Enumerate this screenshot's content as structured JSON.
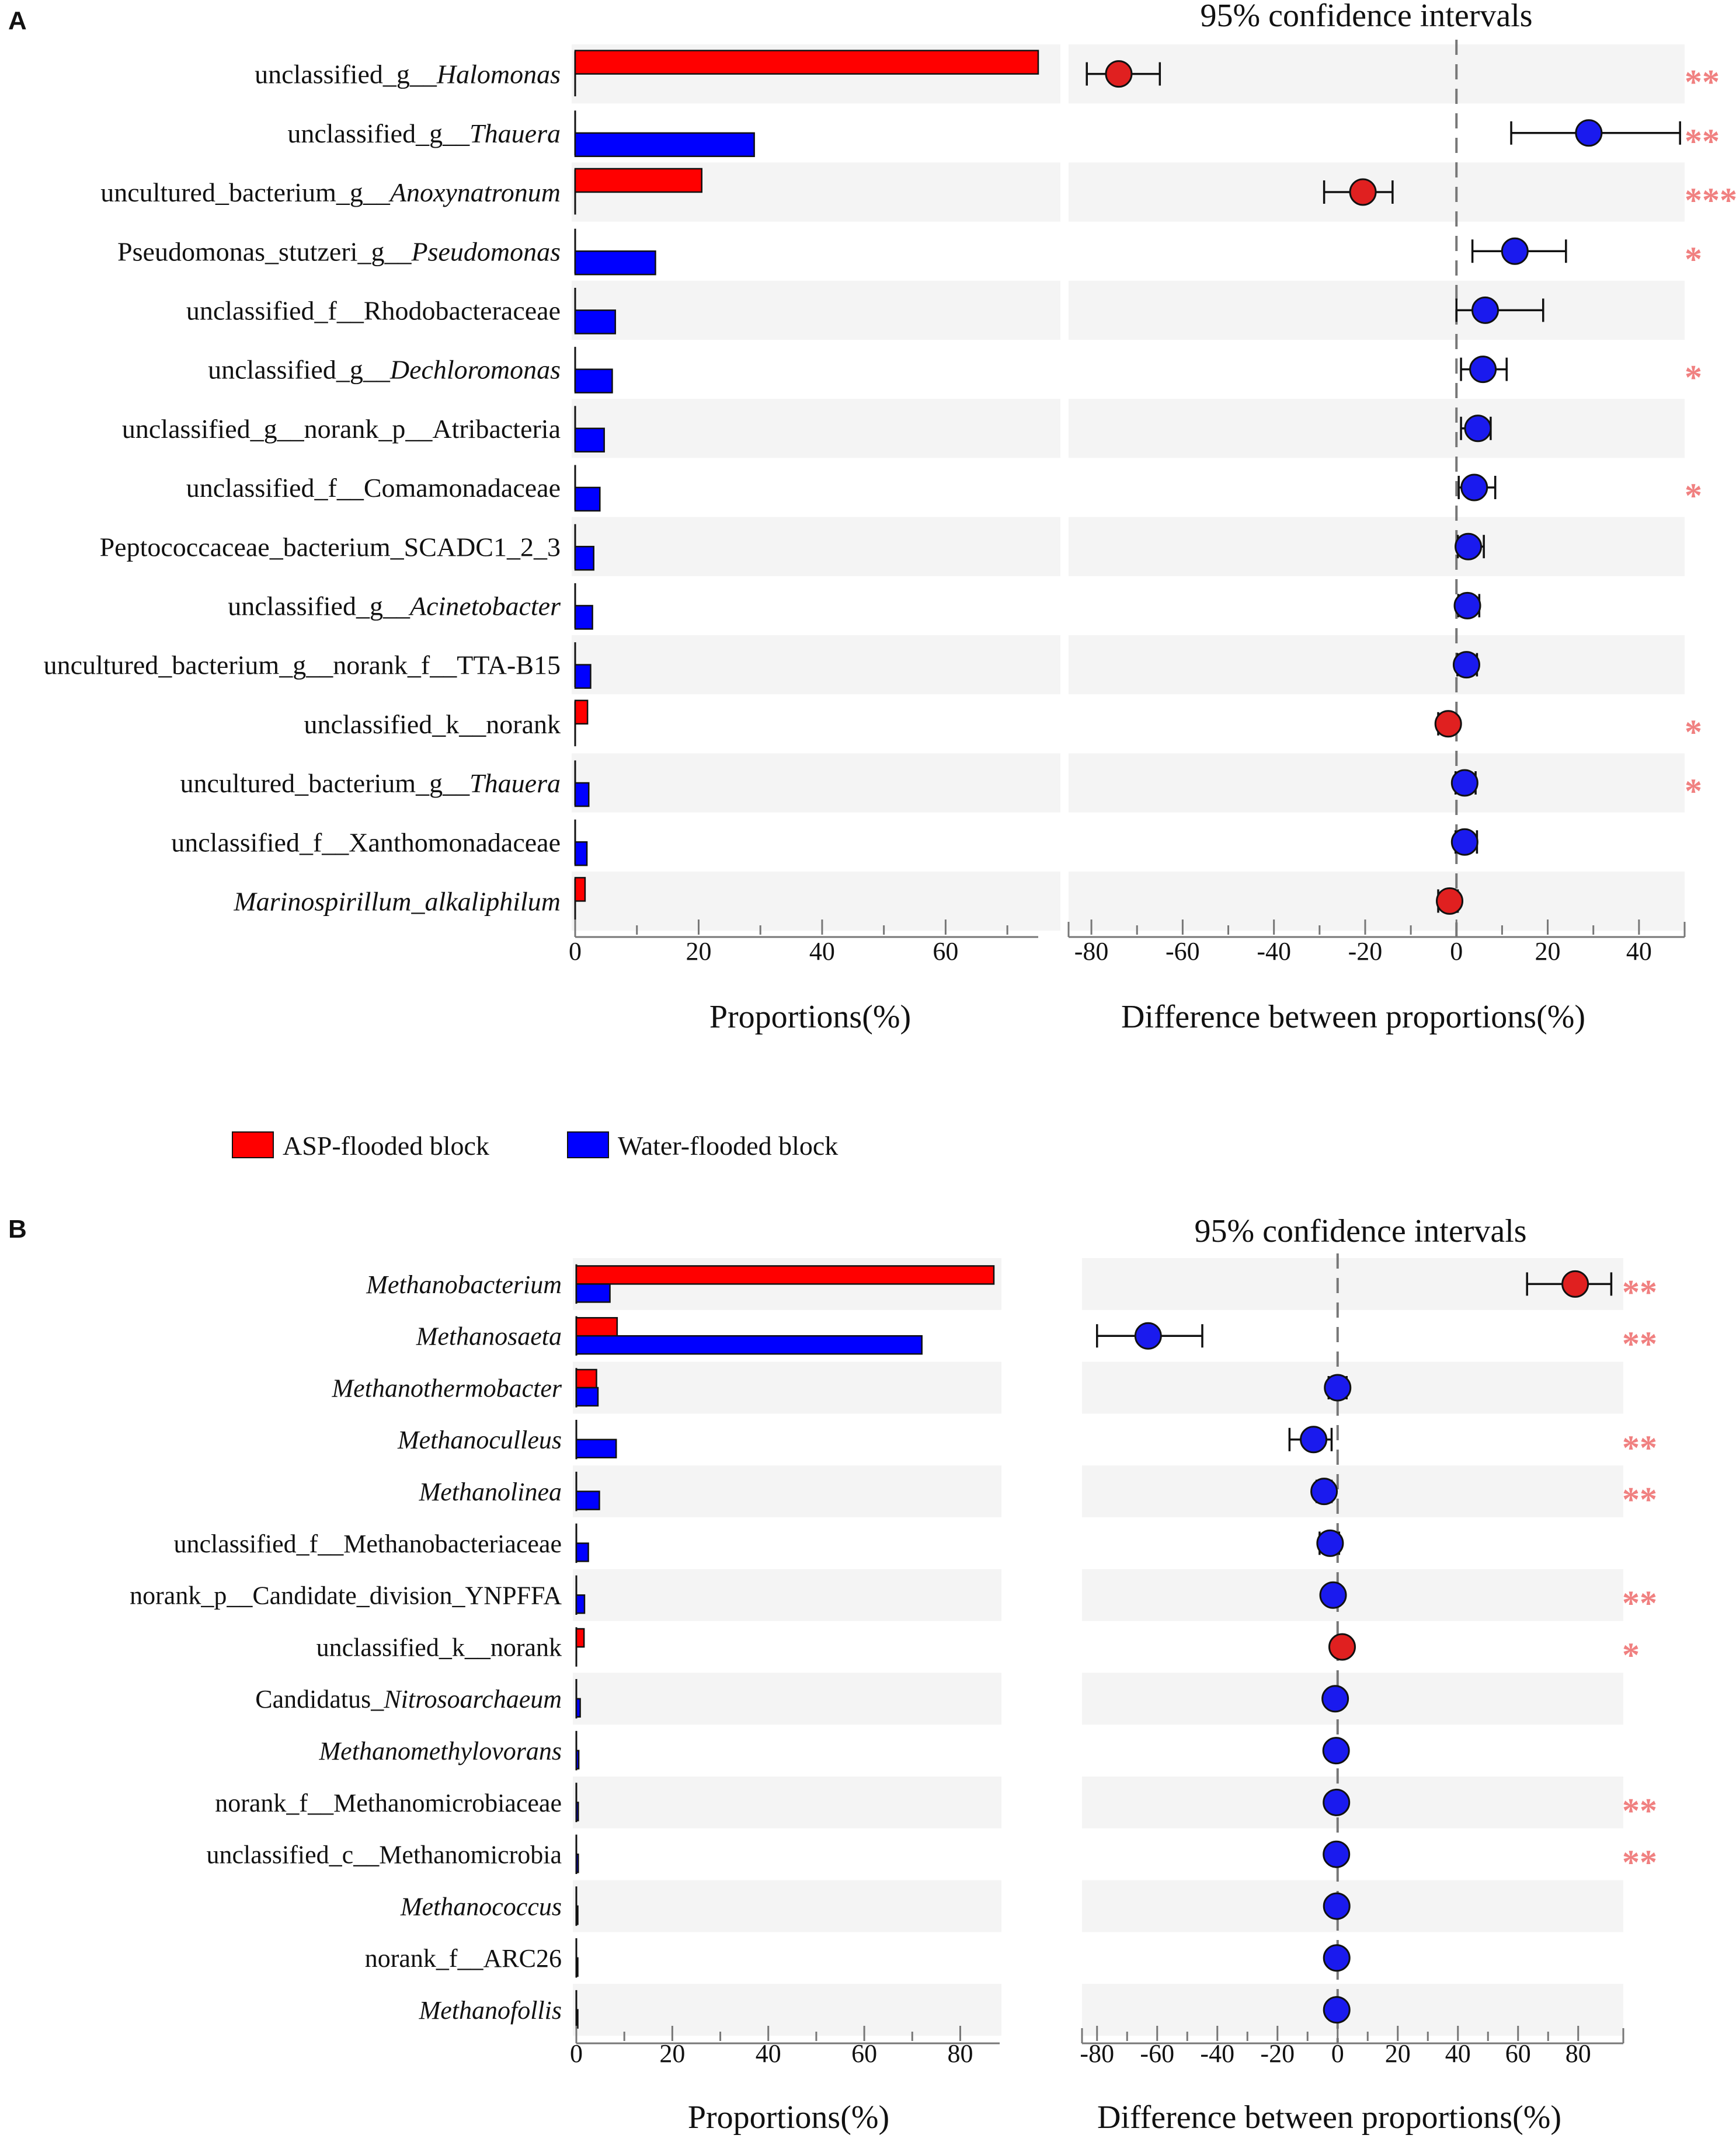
{
  "panel_letters": [
    "A",
    "B"
  ],
  "legend": [
    {
      "label": "ASP-flooded block",
      "color": "#ff0000"
    },
    {
      "label": "Water-flooded block",
      "color": "#0000ff"
    }
  ],
  "colors": {
    "asp": "#ff0000",
    "water": "#0000ff",
    "asp_dot": "#e02020",
    "water_dot": "#1a1aee",
    "stripe": "#f4f4f4",
    "star": "#f08080"
  },
  "chart_data": [
    {
      "type": "bar",
      "panel": "A",
      "title": "95% confidence intervals",
      "xlabel_left": "Proportions(%)",
      "xlabel_right": "Difference between proportions(%)",
      "left_xlim": [
        0,
        75
      ],
      "left_ticks": [
        "0",
        "20",
        "40",
        "60"
      ],
      "right_xlim": [
        -85,
        50
      ],
      "right_ticks": [
        "-80",
        "-60",
        "-40",
        "-20",
        "0",
        "20",
        "40"
      ],
      "series": [
        {
          "name": "ASP-flooded block",
          "values": [
            75.0,
            0.0,
            20.5,
            0.0,
            0.0,
            0.0,
            0.0,
            0.0,
            0.0,
            0.0,
            0.0,
            2.0,
            0.0,
            0.0,
            1.6
          ]
        },
        {
          "name": "Water-flooded block",
          "values": [
            0.0,
            29.0,
            0.0,
            13.0,
            6.5,
            6.0,
            4.7,
            4.0,
            3.0,
            2.8,
            2.5,
            0.0,
            2.2,
            1.9,
            0.0
          ]
        }
      ],
      "categories": [
        {
          "prefix": "unclassified_g__",
          "italic": "Halomonas",
          "suffix": ""
        },
        {
          "prefix": "unclassified_g__",
          "italic": "Thauera",
          "suffix": ""
        },
        {
          "prefix": "uncultured_bacterium_g__",
          "italic": "Anoxynatronum",
          "suffix": ""
        },
        {
          "prefix": "Pseudomonas_stutzeri_g__",
          "italic": "Pseudomonas",
          "suffix": ""
        },
        {
          "prefix": "unclassified_f__Rhodobacteraceae",
          "italic": "",
          "suffix": ""
        },
        {
          "prefix": "unclassified_g__",
          "italic": "Dechloromonas",
          "suffix": ""
        },
        {
          "prefix": "unclassified_g__norank_p__Atribacteria",
          "italic": "",
          "suffix": ""
        },
        {
          "prefix": "unclassified_f__Comamonadaceae",
          "italic": "",
          "suffix": ""
        },
        {
          "prefix": "Peptococcaceae_bacterium_SCADC1_2_3",
          "italic": "",
          "suffix": ""
        },
        {
          "prefix": "unclassified_g__",
          "italic": "Acinetobacter",
          "suffix": ""
        },
        {
          "prefix": "uncultured_bacterium_g__norank_f__TTA-B15",
          "italic": "",
          "suffix": ""
        },
        {
          "prefix": "unclassified_k__norank",
          "italic": "",
          "suffix": ""
        },
        {
          "prefix": "uncultured_bacterium_g__",
          "italic": "Thauera",
          "suffix": ""
        },
        {
          "prefix": "unclassified_f__Xanthomonadaceae",
          "italic": "",
          "suffix": ""
        },
        {
          "prefix": "",
          "italic": "Marinospirillum_alkaliphilum",
          "suffix": ""
        }
      ],
      "diff": [
        {
          "mean": -74,
          "lo": -81,
          "hi": -65,
          "group": "asp",
          "sig": "**"
        },
        {
          "mean": 29,
          "lo": 12,
          "hi": 49,
          "group": "water",
          "sig": "**"
        },
        {
          "mean": -20.5,
          "lo": -29,
          "hi": -14,
          "group": "asp",
          "sig": "***"
        },
        {
          "mean": 12.8,
          "lo": 3.5,
          "hi": 24,
          "group": "water",
          "sig": "*"
        },
        {
          "mean": 6.3,
          "lo": 0,
          "hi": 19,
          "group": "water",
          "sig": ""
        },
        {
          "mean": 5.8,
          "lo": 1,
          "hi": 11,
          "group": "water",
          "sig": "*"
        },
        {
          "mean": 4.7,
          "lo": 1,
          "hi": 7.5,
          "group": "water",
          "sig": ""
        },
        {
          "mean": 3.9,
          "lo": 0.5,
          "hi": 8.5,
          "group": "water",
          "sig": "*"
        },
        {
          "mean": 2.6,
          "lo": 0.3,
          "hi": 6,
          "group": "water",
          "sig": ""
        },
        {
          "mean": 2.4,
          "lo": 0.4,
          "hi": 5,
          "group": "water",
          "sig": ""
        },
        {
          "mean": 2.2,
          "lo": 0.2,
          "hi": 4.5,
          "group": "water",
          "sig": ""
        },
        {
          "mean": -1.8,
          "lo": -4,
          "hi": -0.5,
          "group": "asp",
          "sig": "*"
        },
        {
          "mean": 1.8,
          "lo": -0.2,
          "hi": 4.2,
          "group": "water",
          "sig": "*"
        },
        {
          "mean": 1.8,
          "lo": -0.2,
          "hi": 4.5,
          "group": "water",
          "sig": ""
        },
        {
          "mean": -1.5,
          "lo": -4,
          "hi": 0.3,
          "group": "asp",
          "sig": ""
        }
      ]
    },
    {
      "type": "bar",
      "panel": "B",
      "title": "95% confidence intervals",
      "xlabel_left": "Proportions(%)",
      "xlabel_right": "Difference between proportions(%)",
      "left_xlim": [
        0,
        90
      ],
      "left_ticks": [
        "0",
        "20",
        "40",
        "60",
        "80"
      ],
      "right_xlim": [
        -85,
        95
      ],
      "right_ticks": [
        "-80",
        "-60",
        "-40",
        "-20",
        "0",
        "20",
        "40",
        "60",
        "80"
      ],
      "series": [
        {
          "name": "ASP-flooded block",
          "values": [
            87.0,
            8.5,
            4.2,
            0.0,
            0.0,
            0.0,
            0.0,
            1.6,
            0.0,
            0.0,
            0.0,
            0.0,
            0.0,
            0.0,
            0.0
          ]
        },
        {
          "name": "Water-flooded block",
          "values": [
            7.0,
            72.0,
            4.5,
            8.3,
            4.8,
            2.5,
            1.7,
            0.0,
            0.8,
            0.5,
            0.4,
            0.4,
            0.3,
            0.3,
            0.3
          ]
        }
      ],
      "categories": [
        {
          "prefix": "",
          "italic": "Methanobacterium",
          "suffix": ""
        },
        {
          "prefix": "",
          "italic": "Methanosaeta",
          "suffix": ""
        },
        {
          "prefix": "",
          "italic": "Methanothermobacter",
          "suffix": ""
        },
        {
          "prefix": "",
          "italic": "Methanoculleus",
          "suffix": ""
        },
        {
          "prefix": "",
          "italic": "Methanolinea",
          "suffix": ""
        },
        {
          "prefix": "unclassified_f__Methanobacteriaceae",
          "italic": "",
          "suffix": ""
        },
        {
          "prefix": "norank_p__Candidate_division_YNPFFA",
          "italic": "",
          "suffix": ""
        },
        {
          "prefix": "unclassified_k__norank",
          "italic": "",
          "suffix": ""
        },
        {
          "prefix": "Candidatus_",
          "italic": "Nitrosoarchaeum",
          "suffix": ""
        },
        {
          "prefix": "",
          "italic": "Methanomethylovorans",
          "suffix": ""
        },
        {
          "prefix": "norank_f__Methanomicrobiaceae",
          "italic": "",
          "suffix": ""
        },
        {
          "prefix": "unclassified_c__Methanomicrobia",
          "italic": "",
          "suffix": ""
        },
        {
          "prefix": "",
          "italic": "Methanococcus",
          "suffix": ""
        },
        {
          "prefix": "norank_f__ARC26",
          "italic": "",
          "suffix": ""
        },
        {
          "prefix": "",
          "italic": "Methanofollis",
          "suffix": ""
        }
      ],
      "diff": [
        {
          "mean": 79,
          "lo": 63,
          "hi": 91,
          "group": "asp",
          "sig": "**"
        },
        {
          "mean": -63,
          "lo": -80,
          "hi": -45,
          "group": "water",
          "sig": "**"
        },
        {
          "mean": 0,
          "lo": -3,
          "hi": 3,
          "group": "water",
          "sig": ""
        },
        {
          "mean": -8,
          "lo": -16,
          "hi": -2,
          "group": "water",
          "sig": "**"
        },
        {
          "mean": -4.5,
          "lo": -7,
          "hi": -2,
          "group": "water",
          "sig": "**"
        },
        {
          "mean": -2.5,
          "lo": -6,
          "hi": 0.5,
          "group": "water",
          "sig": ""
        },
        {
          "mean": -1.5,
          "lo": -3,
          "hi": -0.3,
          "group": "water",
          "sig": "**"
        },
        {
          "mean": 1.5,
          "lo": 0.2,
          "hi": 3,
          "group": "asp",
          "sig": "*"
        },
        {
          "mean": -0.8,
          "lo": -1.8,
          "hi": 0.2,
          "group": "water",
          "sig": ""
        },
        {
          "mean": -0.5,
          "lo": -1.2,
          "hi": 0.2,
          "group": "water",
          "sig": ""
        },
        {
          "mean": -0.4,
          "lo": -0.9,
          "hi": -0.1,
          "group": "water",
          "sig": "**"
        },
        {
          "mean": -0.4,
          "lo": -0.9,
          "hi": -0.1,
          "group": "water",
          "sig": "**"
        },
        {
          "mean": -0.3,
          "lo": -1,
          "hi": 0.3,
          "group": "water",
          "sig": ""
        },
        {
          "mean": -0.3,
          "lo": -1,
          "hi": 0.3,
          "group": "water",
          "sig": ""
        },
        {
          "mean": -0.3,
          "lo": -1,
          "hi": 0.3,
          "group": "water",
          "sig": ""
        }
      ]
    }
  ]
}
